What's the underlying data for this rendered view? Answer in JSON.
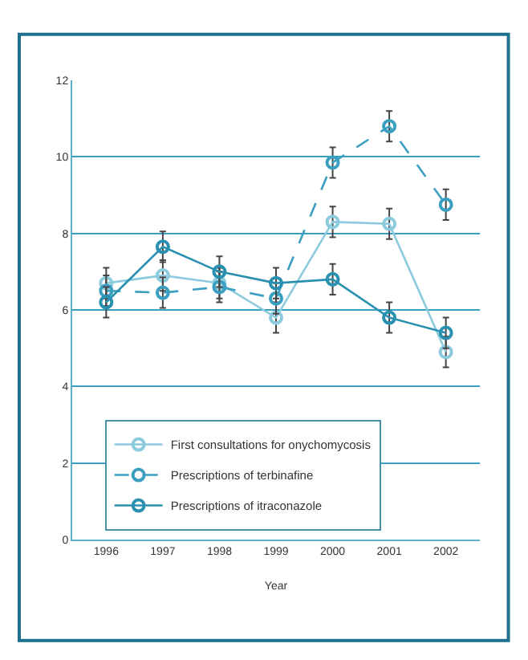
{
  "chart_data": {
    "type": "line",
    "xlabel": "Year",
    "categories": [
      "1996",
      "1997",
      "1998",
      "1999",
      "2000",
      "2001",
      "2002"
    ],
    "series": [
      {
        "name": "First consultations for onychomycosis",
        "color": "#8ccadd",
        "line_style": "solid",
        "values": [
          6.7,
          6.9,
          6.7,
          5.8,
          8.3,
          8.25,
          4.9
        ],
        "errors": [
          0.4,
          0.4,
          0.4,
          0.4,
          0.4,
          0.4,
          0.4
        ]
      },
      {
        "name": "Prescriptions of terbinafine",
        "color": "#3a9fc0",
        "line_style": "dashed",
        "values": [
          6.5,
          6.45,
          6.6,
          6.3,
          9.85,
          10.8,
          8.75
        ],
        "errors": [
          0.4,
          0.4,
          0.4,
          0.4,
          0.4,
          0.4,
          0.4
        ]
      },
      {
        "name": "Prescriptions of itraconazole",
        "color": "#2a90b0",
        "line_style": "solid",
        "values": [
          6.2,
          7.65,
          7.0,
          6.7,
          6.8,
          5.8,
          5.4
        ],
        "errors": [
          0.4,
          0.4,
          0.4,
          0.4,
          0.4,
          0.4,
          0.4
        ]
      }
    ],
    "ylim": [
      0,
      12
    ],
    "yticks": [
      0,
      2,
      4,
      6,
      8,
      10,
      12
    ],
    "grid": "y",
    "legend": "bottom left",
    "marker": "circle"
  }
}
